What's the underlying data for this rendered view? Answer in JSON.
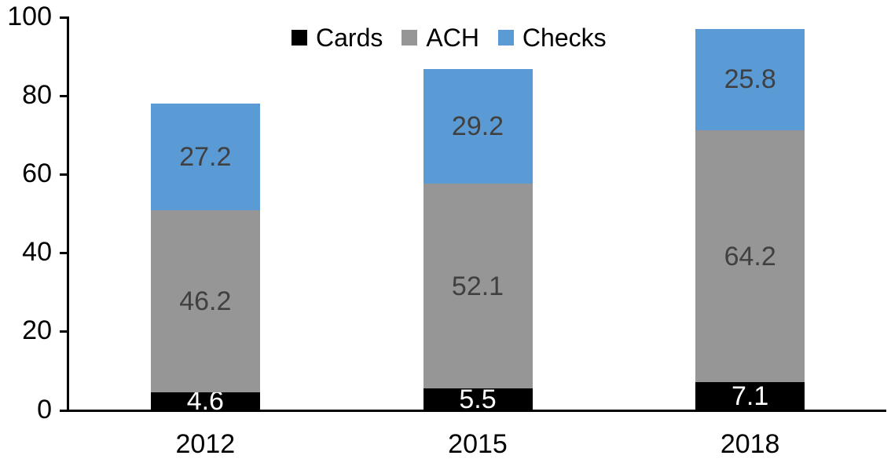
{
  "chart_data": {
    "type": "bar",
    "stacked": true,
    "categories": [
      "2012",
      "2015",
      "2018"
    ],
    "series": [
      {
        "name": "Cards",
        "values": [
          4.6,
          5.5,
          7.1
        ],
        "color": "#000000",
        "label_color": "#FFFFFF"
      },
      {
        "name": "ACH",
        "values": [
          46.2,
          52.1,
          64.2
        ],
        "color": "#969696",
        "label_color": "#404040"
      },
      {
        "name": "Checks",
        "values": [
          27.2,
          29.2,
          25.8
        ],
        "color": "#5B9BD5",
        "label_color": "#404040"
      }
    ],
    "stack_totals": [
      78.0,
      86.8,
      97.1
    ],
    "xlabel": "",
    "ylabel": "",
    "ylim": [
      0,
      100
    ],
    "yticks": [
      0,
      20,
      40,
      60,
      80,
      100
    ],
    "grid": false,
    "legend_position": "top-center",
    "axis_color": "#000000",
    "background_color": "#FFFFFF"
  }
}
